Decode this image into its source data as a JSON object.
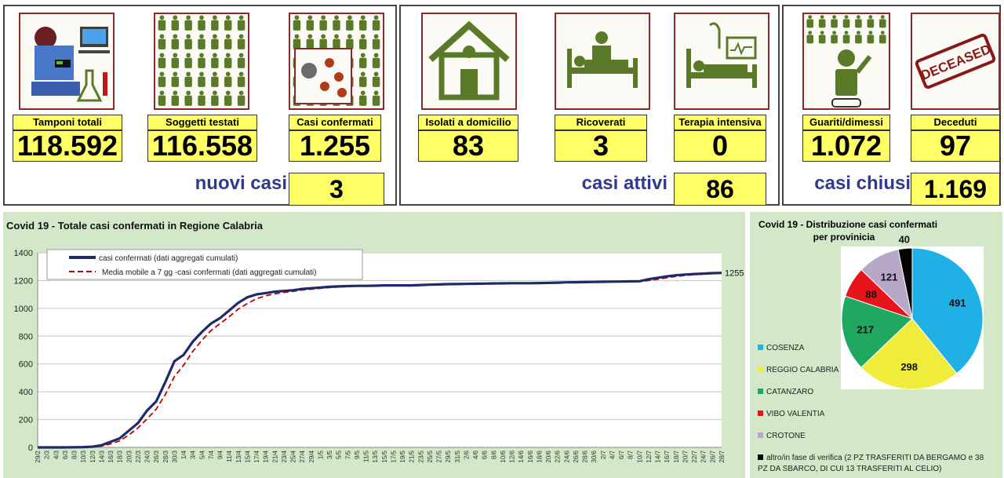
{
  "cards": [
    {
      "label": "Tamponi totali",
      "value": "118.592",
      "icon": "lab-equipment-icon"
    },
    {
      "label": "Soggetti testati",
      "value": "116.558",
      "icon": "people-grid-icon"
    },
    {
      "label": "Casi confermati",
      "value": "1.255",
      "icon": "virus-person-icon"
    },
    {
      "label": "Isolati a domicilio",
      "value": "83",
      "icon": "house-icon"
    },
    {
      "label": "Ricoverati",
      "value": "3",
      "icon": "hospital-bed-icon"
    },
    {
      "label": "Terapia intensiva",
      "value": "0",
      "icon": "icu-bed-icon"
    },
    {
      "label": "Guariti/dimessi",
      "value": "1.072",
      "icon": "recovered-person-icon"
    },
    {
      "label": "Deceduti",
      "value": "97",
      "icon": "deceased-stamp-icon"
    }
  ],
  "deceased_stamp_text": "DECEASED",
  "summary": {
    "new_cases_label": "nuovi casi",
    "new_cases_value": "3",
    "active_label": "casi attivi",
    "active_value": "86",
    "closed_label": "casi chiusi",
    "closed_value": "1.169"
  },
  "colors": {
    "highlight": "#ffff66",
    "summary_text": "#2f3a8c",
    "panel_bg": "#d3e8c8",
    "icon_green": "#5a7a2a",
    "cumulative_line": "#1f2a6b",
    "moving_avg_line": "#c00000"
  },
  "chart_data": [
    {
      "type": "line",
      "title": "Covid 19 - Totale casi confermati in Regione Calabria",
      "ylim": [
        0,
        1400
      ],
      "yticks": [
        0,
        200,
        400,
        600,
        800,
        1000,
        1200,
        1400
      ],
      "grid": true,
      "legend_position": "top-left",
      "end_label": "1255",
      "x_tick_labels": [
        "29/2",
        "2/3",
        "4/3",
        "6/3",
        "8/3",
        "10/3",
        "12/3",
        "14/3",
        "16/3",
        "18/3",
        "20/3",
        "22/3",
        "24/3",
        "26/3",
        "28/3",
        "30/3",
        "1/4",
        "3/4",
        "5/4",
        "7/4",
        "9/4",
        "11/4",
        "13/4",
        "15/4",
        "17/4",
        "19/4",
        "21/4",
        "23/4",
        "25/4",
        "27/4",
        "29/4",
        "1/5",
        "3/5",
        "5/5",
        "7/5",
        "9/5",
        "11/5",
        "13/5",
        "15/5",
        "17/5",
        "19/5",
        "21/5",
        "23/5",
        "25/5",
        "27/5",
        "29/5",
        "31/5",
        "2/6",
        "4/6",
        "6/6",
        "8/6",
        "10/6",
        "12/6",
        "14/6",
        "16/6",
        "18/6",
        "20/6",
        "22/6",
        "24/6",
        "26/6",
        "28/6",
        "30/6",
        "2/7",
        "4/7",
        "6/7",
        "8/7",
        "10/7",
        "12/7",
        "14/7",
        "16/7",
        "18/7",
        "20/7",
        "22/7",
        "24/7",
        "26/7",
        "28/7"
      ],
      "series": [
        {
          "name": "casi confermati (dati aggregati cumulati)",
          "values": [
            0,
            0,
            0,
            0,
            1,
            2,
            5,
            15,
            40,
            65,
            120,
            175,
            265,
            330,
            470,
            620,
            665,
            760,
            830,
            890,
            930,
            985,
            1040,
            1080,
            1100,
            1110,
            1120,
            1125,
            1130,
            1140,
            1145,
            1150,
            1155,
            1158,
            1160,
            1162,
            1162,
            1163,
            1165,
            1165,
            1165,
            1165,
            1168,
            1170,
            1172,
            1174,
            1175,
            1176,
            1177,
            1178,
            1179,
            1180,
            1181,
            1181,
            1181,
            1182,
            1183,
            1185,
            1187,
            1188,
            1189,
            1190,
            1191,
            1192,
            1193,
            1194,
            1195,
            1210,
            1220,
            1230,
            1238,
            1243,
            1247,
            1250,
            1253,
            1255
          ]
        },
        {
          "name": "Media mobile a 7 gg -casi confermati (dati aggregati cumulati)",
          "values": [
            0,
            0,
            0,
            0,
            0,
            1,
            3,
            9,
            25,
            47,
            90,
            140,
            205,
            275,
            380,
            510,
            590,
            690,
            770,
            840,
            890,
            940,
            995,
            1035,
            1070,
            1090,
            1105,
            1115,
            1122,
            1132,
            1138,
            1144,
            1150,
            1154,
            1157,
            1160,
            1161,
            1162,
            1163,
            1164,
            1165,
            1165,
            1166,
            1168,
            1170,
            1172,
            1173,
            1174,
            1175,
            1176,
            1177,
            1178,
            1179,
            1180,
            1180,
            1181,
            1182,
            1183,
            1185,
            1186,
            1187,
            1188,
            1189,
            1190,
            1191,
            1192,
            1193,
            1200,
            1210,
            1220,
            1230,
            1237,
            1242,
            1246,
            1250,
            1253
          ]
        }
      ]
    },
    {
      "type": "pie",
      "title": "Covid 19 - Distribuzione casi confermati per provinicia",
      "title_lines": [
        "Covid 19 - Distribuzione casi confermati",
        "per provinicia"
      ],
      "slices": [
        {
          "label": "COSENZA",
          "value": 491,
          "color": "#1fb0e6"
        },
        {
          "label": "REGGIO CALABRIA",
          "value": 298,
          "color": "#f0ec3c"
        },
        {
          "label": "CATANZARO",
          "value": 217,
          "color": "#20a860"
        },
        {
          "label": "VIBO VALENTIA",
          "value": 88,
          "color": "#e8141c"
        },
        {
          "label": "CROTONE",
          "value": 121,
          "color": "#b8a8c8"
        },
        {
          "label": "altro/in fase di verifica (2 PZ TRASFERITI DA BERGAMO e 38 PZ DA SBARCO, DI CUI 13 TRASFERITI AL CELIO)",
          "value": 40,
          "color": "#000000"
        }
      ]
    }
  ]
}
